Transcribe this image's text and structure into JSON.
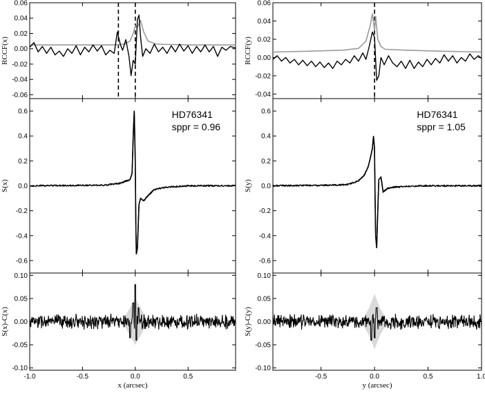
{
  "chart_data": [
    {
      "type": "line",
      "panel": "left-top",
      "ylabel": "RCCF(x)",
      "xlim": [
        -1.0,
        0.95
      ],
      "ylim": [
        -0.065,
        0.06
      ],
      "yticks": [
        "0.06",
        "0.04",
        "0.02",
        "0.00",
        "-0.02",
        "-0.04",
        "-0.06"
      ],
      "ytick_values": [
        0.06,
        0.04,
        0.02,
        0.0,
        -0.02,
        -0.04,
        -0.06
      ],
      "vlines": [
        -0.16,
        0.0
      ],
      "series": [
        {
          "color": "#999999",
          "points": [
            [
              -1.0,
              0.005
            ],
            [
              -0.6,
              0.005
            ],
            [
              -0.2,
              0.005
            ],
            [
              -0.1,
              0.006
            ],
            [
              -0.05,
              0.01
            ],
            [
              -0.02,
              0.02
            ],
            [
              0.0,
              0.03
            ],
            [
              0.02,
              0.028
            ],
            [
              0.05,
              0.037
            ],
            [
              0.08,
              0.022
            ],
            [
              0.12,
              0.01
            ],
            [
              0.2,
              0.006
            ],
            [
              0.5,
              0.005
            ],
            [
              0.95,
              0.005
            ]
          ]
        },
        {
          "color": "#000000",
          "points": [
            [
              -1.0,
              0.002
            ],
            [
              -0.96,
              0.008
            ],
            [
              -0.92,
              -0.004
            ],
            [
              -0.88,
              0.003
            ],
            [
              -0.84,
              -0.006
            ],
            [
              -0.8,
              0.002
            ],
            [
              -0.76,
              -0.008
            ],
            [
              -0.72,
              -0.003
            ],
            [
              -0.68,
              -0.01
            ],
            [
              -0.64,
              0.0
            ],
            [
              -0.6,
              -0.006
            ],
            [
              -0.56,
              0.004
            ],
            [
              -0.52,
              -0.008
            ],
            [
              -0.48,
              0.002
            ],
            [
              -0.44,
              -0.004
            ],
            [
              -0.4,
              0.005
            ],
            [
              -0.36,
              -0.003
            ],
            [
              -0.32,
              0.004
            ],
            [
              -0.28,
              -0.008
            ],
            [
              -0.24,
              -0.002
            ],
            [
              -0.2,
              -0.006
            ],
            [
              -0.17,
              0.022
            ],
            [
              -0.14,
              0.005
            ],
            [
              -0.12,
              -0.002
            ],
            [
              -0.09,
              0.012
            ],
            [
              -0.06,
              -0.01
            ],
            [
              -0.04,
              -0.035
            ],
            [
              -0.02,
              -0.015
            ],
            [
              0.0,
              -0.02
            ],
            [
              0.02,
              0.038
            ],
            [
              0.035,
              0.044
            ],
            [
              0.05,
              0.015
            ],
            [
              0.07,
              -0.01
            ],
            [
              0.1,
              0.0
            ],
            [
              0.14,
              -0.006
            ],
            [
              0.18,
              0.006
            ],
            [
              0.22,
              -0.004
            ],
            [
              0.26,
              0.002
            ],
            [
              0.3,
              -0.006
            ],
            [
              0.34,
              0.004
            ],
            [
              0.38,
              -0.004
            ],
            [
              0.42,
              0.006
            ],
            [
              0.46,
              -0.003
            ],
            [
              0.5,
              0.004
            ],
            [
              0.54,
              -0.006
            ],
            [
              0.58,
              0.003
            ],
            [
              0.62,
              -0.004
            ],
            [
              0.66,
              0.005
            ],
            [
              0.7,
              -0.004
            ],
            [
              0.74,
              0.003
            ],
            [
              0.78,
              -0.01
            ],
            [
              0.82,
              0.002
            ],
            [
              0.86,
              -0.002
            ],
            [
              0.9,
              0.003
            ],
            [
              0.95,
              0.001
            ]
          ]
        }
      ]
    },
    {
      "type": "line",
      "panel": "left-middle",
      "ylabel": "S(x)",
      "xlim": [
        -1.0,
        0.95
      ],
      "ylim": [
        -0.7,
        0.7
      ],
      "yticks": [
        "0.6",
        "0.4",
        "0.2",
        "0.0",
        "-0.2",
        "-0.4",
        "-0.6"
      ],
      "ytick_values": [
        0.6,
        0.4,
        0.2,
        0.0,
        -0.2,
        -0.4,
        -0.6
      ],
      "annotation": [
        "HD76341",
        "sppr = 0.96"
      ],
      "noise_amplitude": 0.006,
      "series": [
        {
          "color": "#000000",
          "points": [
            [
              -1.0,
              0.0
            ],
            [
              -0.3,
              0.005
            ],
            [
              -0.15,
              0.02
            ],
            [
              -0.08,
              0.04
            ],
            [
              -0.05,
              0.05
            ],
            [
              -0.03,
              0.1
            ],
            [
              -0.02,
              0.4
            ],
            [
              -0.01,
              0.6
            ],
            [
              0.0,
              0.2
            ],
            [
              0.005,
              -0.3
            ],
            [
              0.01,
              -0.55
            ],
            [
              0.02,
              -0.5
            ],
            [
              0.035,
              -0.15
            ],
            [
              0.05,
              -0.1
            ],
            [
              0.08,
              -0.12
            ],
            [
              0.12,
              -0.08
            ],
            [
              0.18,
              -0.03
            ],
            [
              0.3,
              -0.01
            ],
            [
              0.5,
              0.0
            ],
            [
              0.95,
              0.0
            ]
          ]
        }
      ]
    },
    {
      "type": "line",
      "panel": "left-bottom",
      "xlabel": "x (arcsec)",
      "ylabel": "S(x)-C(x)",
      "xlim": [
        -1.0,
        0.95
      ],
      "ylim": [
        -0.105,
        0.105
      ],
      "xticks": [
        "-1.0",
        "-0.5",
        "0.0",
        "0.5"
      ],
      "xtick_values": [
        -1.0,
        -0.5,
        0.0,
        0.5
      ],
      "yticks": [
        "0.10",
        "0.05",
        "0.00",
        "-0.05",
        "-0.10"
      ],
      "ytick_values": [
        0.1,
        0.05,
        0.0,
        -0.05,
        -0.1
      ],
      "residual_amplitude": 0.012,
      "band": {
        "color": "#d9d9d9",
        "points": [
          [
            -0.1,
            0.01
          ],
          [
            -0.05,
            0.03
          ],
          [
            0.0,
            0.05
          ],
          [
            0.05,
            0.03
          ],
          [
            0.1,
            0.01
          ]
        ]
      },
      "spikes": [
        [
          -0.05,
          -0.035
        ],
        [
          -0.02,
          0.04
        ],
        [
          0.0,
          0.08
        ],
        [
          0.01,
          -0.04
        ],
        [
          0.03,
          0.03
        ]
      ]
    },
    {
      "type": "line",
      "panel": "right-top",
      "ylabel": "RCCF(y)",
      "xlim": [
        -0.95,
        1.0
      ],
      "ylim": [
        -0.045,
        0.06
      ],
      "yticks": [
        "0.06",
        "0.04",
        "0.02",
        "0.00",
        "-0.02",
        "-0.04"
      ],
      "ytick_values": [
        0.06,
        0.04,
        0.02,
        0.0,
        -0.02,
        -0.04
      ],
      "vlines": [
        0.0
      ],
      "series": [
        {
          "color": "#999999",
          "points": [
            [
              -0.95,
              0.006
            ],
            [
              -0.6,
              0.007
            ],
            [
              -0.3,
              0.008
            ],
            [
              -0.15,
              0.01
            ],
            [
              -0.08,
              0.018
            ],
            [
              -0.04,
              0.035
            ],
            [
              -0.02,
              0.048
            ],
            [
              0.0,
              0.03
            ],
            [
              0.01,
              0.045
            ],
            [
              0.03,
              0.02
            ],
            [
              0.06,
              0.012
            ],
            [
              0.1,
              0.009
            ],
            [
              0.3,
              0.008
            ],
            [
              0.6,
              0.007
            ],
            [
              1.0,
              0.006
            ]
          ]
        },
        {
          "color": "#000000",
          "points": [
            [
              -0.95,
              -0.002
            ],
            [
              -0.91,
              0.002
            ],
            [
              -0.87,
              -0.004
            ],
            [
              -0.83,
              0.0
            ],
            [
              -0.79,
              -0.006
            ],
            [
              -0.75,
              -0.002
            ],
            [
              -0.71,
              -0.008
            ],
            [
              -0.67,
              -0.003
            ],
            [
              -0.63,
              -0.009
            ],
            [
              -0.59,
              -0.004
            ],
            [
              -0.55,
              -0.01
            ],
            [
              -0.51,
              -0.005
            ],
            [
              -0.47,
              -0.011
            ],
            [
              -0.43,
              -0.006
            ],
            [
              -0.39,
              -0.012
            ],
            [
              -0.35,
              -0.004
            ],
            [
              -0.31,
              -0.008
            ],
            [
              -0.27,
              -0.002
            ],
            [
              -0.23,
              -0.006
            ],
            [
              -0.19,
              0.002
            ],
            [
              -0.15,
              -0.004
            ],
            [
              -0.11,
              0.005
            ],
            [
              -0.08,
              -0.002
            ],
            [
              -0.05,
              0.012
            ],
            [
              -0.02,
              0.028
            ],
            [
              0.0,
              0.022
            ],
            [
              0.02,
              -0.025
            ],
            [
              0.04,
              -0.02
            ],
            [
              0.06,
              0.0
            ],
            [
              0.09,
              -0.008
            ],
            [
              0.13,
              0.002
            ],
            [
              0.17,
              -0.006
            ],
            [
              0.21,
              -0.01
            ],
            [
              0.25,
              -0.004
            ],
            [
              0.29,
              -0.012
            ],
            [
              0.33,
              -0.003
            ],
            [
              0.37,
              -0.012
            ],
            [
              0.41,
              -0.005
            ],
            [
              0.45,
              -0.01
            ],
            [
              0.49,
              -0.002
            ],
            [
              0.53,
              -0.008
            ],
            [
              0.57,
              -0.001
            ],
            [
              0.61,
              -0.006
            ],
            [
              0.65,
              0.003
            ],
            [
              0.69,
              -0.004
            ],
            [
              0.73,
              0.002
            ],
            [
              0.77,
              -0.006
            ],
            [
              0.81,
              0.0
            ],
            [
              0.85,
              -0.004
            ],
            [
              0.89,
              0.004
            ],
            [
              0.93,
              -0.002
            ],
            [
              0.97,
              0.002
            ],
            [
              1.0,
              -0.001
            ]
          ]
        }
      ]
    },
    {
      "type": "line",
      "panel": "right-middle",
      "ylabel": "S(y)",
      "xlim": [
        -0.95,
        1.0
      ],
      "ylim": [
        -0.7,
        0.7
      ],
      "yticks": [
        "0.6",
        "0.4",
        "0.2",
        "0.0",
        "-0.2",
        "-0.4",
        "-0.6"
      ],
      "ytick_values": [
        0.6,
        0.4,
        0.2,
        0.0,
        -0.2,
        -0.4,
        -0.6
      ],
      "annotation": [
        "HD76341",
        "sppr = 1.05"
      ],
      "noise_amplitude": 0.006,
      "series": [
        {
          "color": "#000000",
          "points": [
            [
              -0.95,
              0.0
            ],
            [
              -0.4,
              0.005
            ],
            [
              -0.25,
              0.01
            ],
            [
              -0.15,
              0.04
            ],
            [
              -0.1,
              0.08
            ],
            [
              -0.06,
              0.15
            ],
            [
              -0.04,
              0.22
            ],
            [
              -0.02,
              0.3
            ],
            [
              -0.01,
              0.4
            ],
            [
              0.0,
              0.3
            ],
            [
              0.005,
              -0.1
            ],
            [
              0.01,
              -0.4
            ],
            [
              0.02,
              -0.5
            ],
            [
              0.03,
              -0.2
            ],
            [
              0.04,
              0.05
            ],
            [
              0.06,
              0.07
            ],
            [
              0.08,
              -0.05
            ],
            [
              0.12,
              -0.02
            ],
            [
              0.2,
              -0.01
            ],
            [
              0.4,
              0.0
            ],
            [
              1.0,
              0.0
            ]
          ]
        }
      ]
    },
    {
      "type": "line",
      "panel": "right-bottom",
      "xlabel": "y (arcsec)",
      "ylabel": "S(y)-C(y)",
      "xlim": [
        -0.95,
        1.0
      ],
      "ylim": [
        -0.105,
        0.105
      ],
      "xticks": [
        "-0.5",
        "0.0",
        "0.5",
        "1.0"
      ],
      "xtick_values": [
        -0.5,
        0.0,
        0.5,
        1.0
      ],
      "yticks": [
        "0.10",
        "0.05",
        "0.00",
        "-0.05",
        "-0.10"
      ],
      "ytick_values": [
        0.1,
        0.05,
        0.0,
        -0.05,
        -0.1
      ],
      "residual_amplitude": 0.012,
      "band": {
        "color": "#d9d9d9",
        "points": [
          [
            -0.1,
            0.01
          ],
          [
            -0.05,
            0.03
          ],
          [
            0.0,
            0.06
          ],
          [
            0.05,
            0.03
          ],
          [
            0.1,
            0.01
          ]
        ]
      },
      "spikes": [
        [
          -0.03,
          -0.04
        ],
        [
          0.0,
          -0.035
        ],
        [
          0.02,
          0.03
        ]
      ]
    }
  ]
}
